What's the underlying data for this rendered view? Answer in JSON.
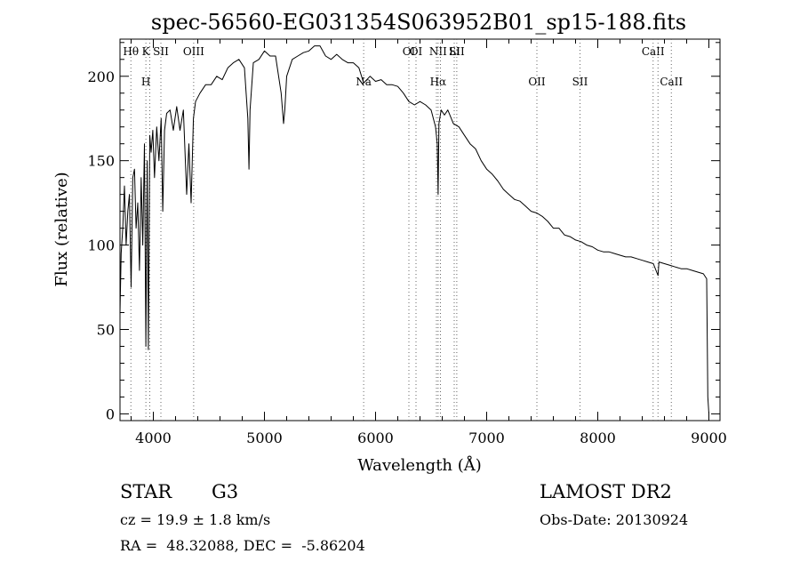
{
  "chart_data": {
    "type": "line",
    "title": "spec-56560-EG031354S063952B01_sp15-188.fits",
    "xlabel": "Wavelength (Å)",
    "ylabel": "Flux (relative)",
    "xlim": [
      3700,
      9100
    ],
    "ylim": [
      -4,
      222
    ],
    "xticks": [
      4000,
      5000,
      6000,
      7000,
      8000,
      9000
    ],
    "yticks": [
      0,
      50,
      100,
      150,
      200
    ],
    "grid": false,
    "series": [
      {
        "x": [
          3700,
          3710,
          3725,
          3740,
          3755,
          3770,
          3785,
          3800,
          3815,
          3830,
          3845,
          3860,
          3875,
          3890,
          3905,
          3920,
          3933,
          3945,
          3955,
          3968,
          3980,
          3995,
          4010,
          4030,
          4050,
          4070,
          4085,
          4101,
          4120,
          4150,
          4180,
          4210,
          4240,
          4270,
          4300,
          4320,
          4340,
          4361,
          4380,
          4420,
          4470,
          4520,
          4570,
          4620,
          4670,
          4720,
          4770,
          4820,
          4850,
          4861,
          4870,
          4900,
          4950,
          5000,
          5050,
          5100,
          5150,
          5172,
          5183,
          5200,
          5250,
          5300,
          5350,
          5400,
          5450,
          5500,
          5550,
          5600,
          5650,
          5700,
          5750,
          5800,
          5850,
          5893,
          5950,
          6000,
          6050,
          6100,
          6150,
          6200,
          6250,
          6300,
          6350,
          6400,
          6450,
          6500,
          6540,
          6555,
          6563,
          6570,
          6590,
          6620,
          6650,
          6700,
          6750,
          6800,
          6850,
          6900,
          6950,
          7000,
          7050,
          7100,
          7150,
          7200,
          7250,
          7300,
          7350,
          7400,
          7450,
          7500,
          7550,
          7600,
          7650,
          7700,
          7750,
          7800,
          7850,
          7900,
          7950,
          8000,
          8050,
          8100,
          8150,
          8200,
          8250,
          8300,
          8350,
          8400,
          8450,
          8500,
          8542,
          8550,
          8600,
          8650,
          8700,
          8750,
          8800,
          8850,
          8900,
          8950,
          8980,
          8990,
          9000
        ],
        "y": [
          60,
          95,
          110,
          135,
          100,
          120,
          130,
          75,
          140,
          145,
          110,
          125,
          85,
          140,
          100,
          160,
          40,
          150,
          38,
          165,
          155,
          168,
          140,
          170,
          150,
          175,
          120,
          168,
          178,
          180,
          168,
          182,
          168,
          180,
          130,
          160,
          125,
          175,
          185,
          190,
          195,
          195,
          200,
          198,
          205,
          208,
          210,
          205,
          175,
          145,
          180,
          208,
          210,
          215,
          212,
          212,
          190,
          172,
          180,
          200,
          210,
          212,
          214,
          215,
          218,
          218,
          212,
          210,
          213,
          210,
          208,
          208,
          205,
          196,
          200,
          197,
          198,
          195,
          195,
          194,
          190,
          185,
          183,
          185,
          183,
          180,
          170,
          160,
          130,
          172,
          180,
          177,
          180,
          172,
          170,
          165,
          160,
          157,
          150,
          145,
          142,
          138,
          133,
          130,
          127,
          126,
          123,
          120,
          119,
          117,
          114,
          110,
          110,
          106,
          105,
          103,
          102,
          100,
          99,
          97,
          96,
          96,
          95,
          94,
          93,
          93,
          92,
          91,
          90,
          89,
          82,
          90,
          89,
          88,
          87,
          86,
          86,
          85,
          84,
          83,
          80,
          10,
          0
        ]
      }
    ],
    "lines": [
      {
        "x": 3798,
        "top": [
          "Hθ"
        ],
        "bottom": []
      },
      {
        "x": 3933,
        "top": [
          "K"
        ],
        "bottom": [
          "H"
        ]
      },
      {
        "x": 3968,
        "top": [],
        "bottom": []
      },
      {
        "x": 4068,
        "top": [
          "SII"
        ],
        "bottom": []
      },
      {
        "x": 4363,
        "top": [
          "OIII"
        ],
        "bottom": []
      },
      {
        "x": 5893,
        "top": [],
        "bottom": [
          "Na"
        ]
      },
      {
        "x": 6300,
        "top": [
          "OI"
        ],
        "bottom": []
      },
      {
        "x": 6364,
        "top": [
          "OI"
        ],
        "bottom": []
      },
      {
        "x": 6548,
        "top": [],
        "bottom": []
      },
      {
        "x": 6563,
        "top": [
          "NII"
        ],
        "bottom": [
          "Hα"
        ]
      },
      {
        "x": 6584,
        "top": [],
        "bottom": []
      },
      {
        "x": 6708,
        "top": [
          "Li"
        ],
        "bottom": []
      },
      {
        "x": 6731,
        "top": [
          "SII"
        ],
        "bottom": []
      },
      {
        "x": 7452,
        "top": [],
        "bottom": [
          "OII"
        ]
      },
      {
        "x": 7840,
        "top": [],
        "bottom": [
          "SII"
        ]
      },
      {
        "x": 8498,
        "top": [
          "CaII"
        ],
        "bottom": []
      },
      {
        "x": 8542,
        "top": [],
        "bottom": []
      },
      {
        "x": 8662,
        "top": [],
        "bottom": [
          "CaII"
        ]
      }
    ]
  },
  "info": {
    "class_label": "STAR",
    "subclass": "G3",
    "survey": "LAMOST DR2",
    "redshift": "cz = 19.9 ± 1.8 km/s",
    "obs_date": "Obs-Date: 20130924",
    "coords": "RA =  48.32088, DEC =  -5.86204"
  }
}
